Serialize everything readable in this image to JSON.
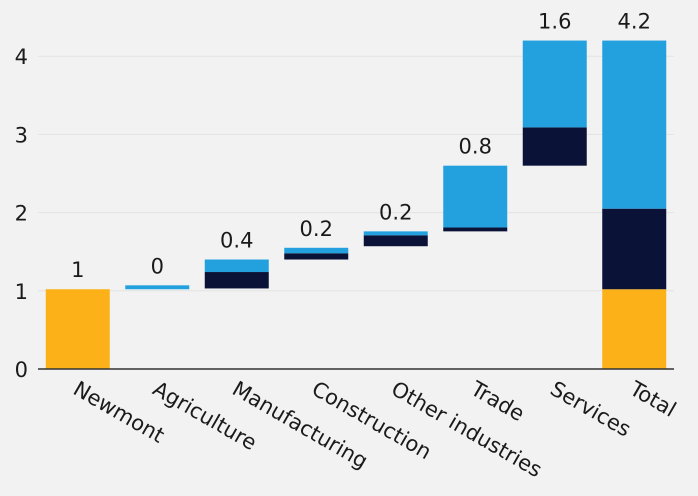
{
  "chart_data": {
    "type": "bar",
    "subtype": "stacked-waterfall",
    "title": "",
    "xlabel": "",
    "ylabel": "",
    "ylim": [
      0,
      4.2
    ],
    "yticks": [
      0,
      1,
      2,
      3,
      4
    ],
    "grid": true,
    "categories": [
      "Newmont",
      "Agriculture",
      "Manufacturing",
      "Construction",
      "Other industries",
      "Trade",
      "Services",
      "Total"
    ],
    "data_labels": [
      "1",
      "0",
      "0.4",
      "0.2",
      "0.2",
      "0.8",
      "1.6",
      "4.2"
    ],
    "series_colors": [
      "#fbb117",
      "#0a1238",
      "#22a1de"
    ],
    "bars": [
      {
        "base": 0,
        "segments": [
          {
            "value": 1.02,
            "color": "#fbb117"
          }
        ]
      },
      {
        "base": 1.02,
        "segments": [
          {
            "value": 0.05,
            "color": "#22a1de"
          }
        ]
      },
      {
        "base": 1.03,
        "segments": [
          {
            "value": 0.21,
            "color": "#0a1238"
          },
          {
            "value": 0.16,
            "color": "#22a1de"
          }
        ]
      },
      {
        "base": 1.4,
        "segments": [
          {
            "value": 0.08,
            "color": "#0a1238"
          },
          {
            "value": 0.07,
            "color": "#22a1de"
          }
        ]
      },
      {
        "base": 1.57,
        "segments": [
          {
            "value": 0.14,
            "color": "#0a1238"
          },
          {
            "value": 0.05,
            "color": "#22a1de"
          }
        ]
      },
      {
        "base": 1.76,
        "segments": [
          {
            "value": 0.05,
            "color": "#0a1238"
          },
          {
            "value": 0.79,
            "color": "#22a1de"
          }
        ]
      },
      {
        "base": 2.6,
        "segments": [
          {
            "value": 0.49,
            "color": "#0a1238"
          },
          {
            "value": 1.11,
            "color": "#22a1de"
          }
        ]
      },
      {
        "base": 0,
        "segments": [
          {
            "value": 1.02,
            "color": "#fbb117"
          },
          {
            "value": 1.03,
            "color": "#0a1238"
          },
          {
            "value": 2.15,
            "color": "#22a1de"
          }
        ]
      }
    ]
  }
}
